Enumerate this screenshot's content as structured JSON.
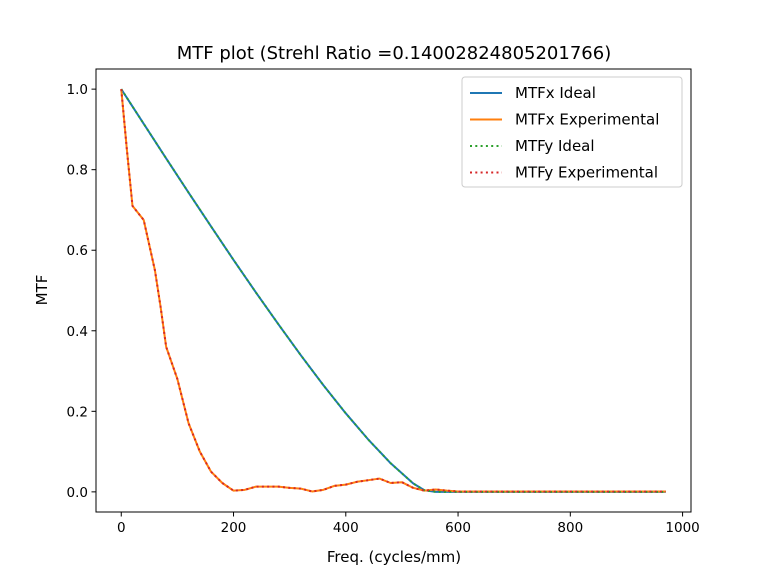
{
  "chart_data": {
    "type": "line",
    "title": "MTF plot (Strehl Ratio =0.14002824805201766)",
    "xlabel": "Freq. (cycles/mm)",
    "ylabel": "MTF",
    "xlim": [
      -45,
      1015
    ],
    "ylim": [
      -0.05,
      1.05
    ],
    "xticks": [
      0,
      200,
      400,
      600,
      800,
      1000
    ],
    "xtick_labels": [
      "0",
      "200",
      "400",
      "600",
      "800",
      "1000"
    ],
    "yticks": [
      0.0,
      0.2,
      0.4,
      0.6,
      0.8,
      1.0
    ],
    "ytick_labels": [
      "0.0",
      "0.2",
      "0.4",
      "0.6",
      "0.8",
      "1.0"
    ],
    "grid": false,
    "legend_position": "top-right",
    "series": [
      {
        "name": "MTFx Ideal",
        "color": "#1f77b4",
        "dash": "solid",
        "x": [
          0,
          40,
          80,
          120,
          160,
          200,
          240,
          280,
          320,
          360,
          400,
          440,
          480,
          520,
          540,
          560,
          600,
          700,
          800,
          900,
          970
        ],
        "y": [
          1.0,
          0.914,
          0.828,
          0.743,
          0.659,
          0.576,
          0.495,
          0.416,
          0.339,
          0.265,
          0.195,
          0.13,
          0.071,
          0.021,
          0.004,
          0.0,
          0.0,
          0.0,
          0.0,
          0.0,
          0.0
        ]
      },
      {
        "name": "MTFx Experimental",
        "color": "#ff7f0e",
        "dash": "solid",
        "x": [
          0,
          10,
          20,
          40,
          60,
          70,
          80,
          100,
          120,
          140,
          160,
          180,
          200,
          220,
          240,
          260,
          280,
          300,
          320,
          340,
          360,
          380,
          400,
          420,
          440,
          460,
          480,
          500,
          520,
          540,
          560,
          580,
          600,
          700,
          800,
          900,
          970
        ],
        "y": [
          1.0,
          0.85,
          0.71,
          0.675,
          0.55,
          0.46,
          0.36,
          0.28,
          0.17,
          0.1,
          0.05,
          0.022,
          0.003,
          0.005,
          0.013,
          0.013,
          0.013,
          0.01,
          0.008,
          0.001,
          0.005,
          0.015,
          0.018,
          0.025,
          0.029,
          0.033,
          0.022,
          0.024,
          0.01,
          0.003,
          0.006,
          0.003,
          0.001,
          0.001,
          0.001,
          0.001,
          0.001
        ]
      },
      {
        "name": "MTFy Ideal",
        "color": "#2ca02c",
        "dash": "dotted",
        "x": [
          0,
          40,
          80,
          120,
          160,
          200,
          240,
          280,
          320,
          360,
          400,
          440,
          480,
          520,
          540,
          560,
          600,
          700,
          800,
          900,
          970
        ],
        "y": [
          1.0,
          0.914,
          0.828,
          0.743,
          0.659,
          0.576,
          0.495,
          0.416,
          0.339,
          0.265,
          0.195,
          0.13,
          0.071,
          0.021,
          0.004,
          0.0,
          0.0,
          0.0,
          0.0,
          0.0,
          0.0
        ]
      },
      {
        "name": "MTFy Experimental",
        "color": "#d62728",
        "dash": "dotted",
        "x": [
          0,
          10,
          20,
          40,
          60,
          70,
          80,
          100,
          120,
          140,
          160,
          180,
          200,
          220,
          240,
          260,
          280,
          300,
          320,
          340,
          360,
          380,
          400,
          420,
          440,
          460,
          480,
          500,
          520,
          540,
          560,
          580,
          600,
          700,
          800,
          900,
          970
        ],
        "y": [
          1.0,
          0.85,
          0.71,
          0.675,
          0.55,
          0.46,
          0.36,
          0.28,
          0.17,
          0.1,
          0.05,
          0.022,
          0.003,
          0.005,
          0.013,
          0.013,
          0.013,
          0.01,
          0.008,
          0.001,
          0.005,
          0.015,
          0.018,
          0.025,
          0.029,
          0.033,
          0.022,
          0.024,
          0.01,
          0.003,
          0.006,
          0.003,
          0.001,
          0.001,
          0.001,
          0.001,
          0.001
        ]
      }
    ]
  }
}
